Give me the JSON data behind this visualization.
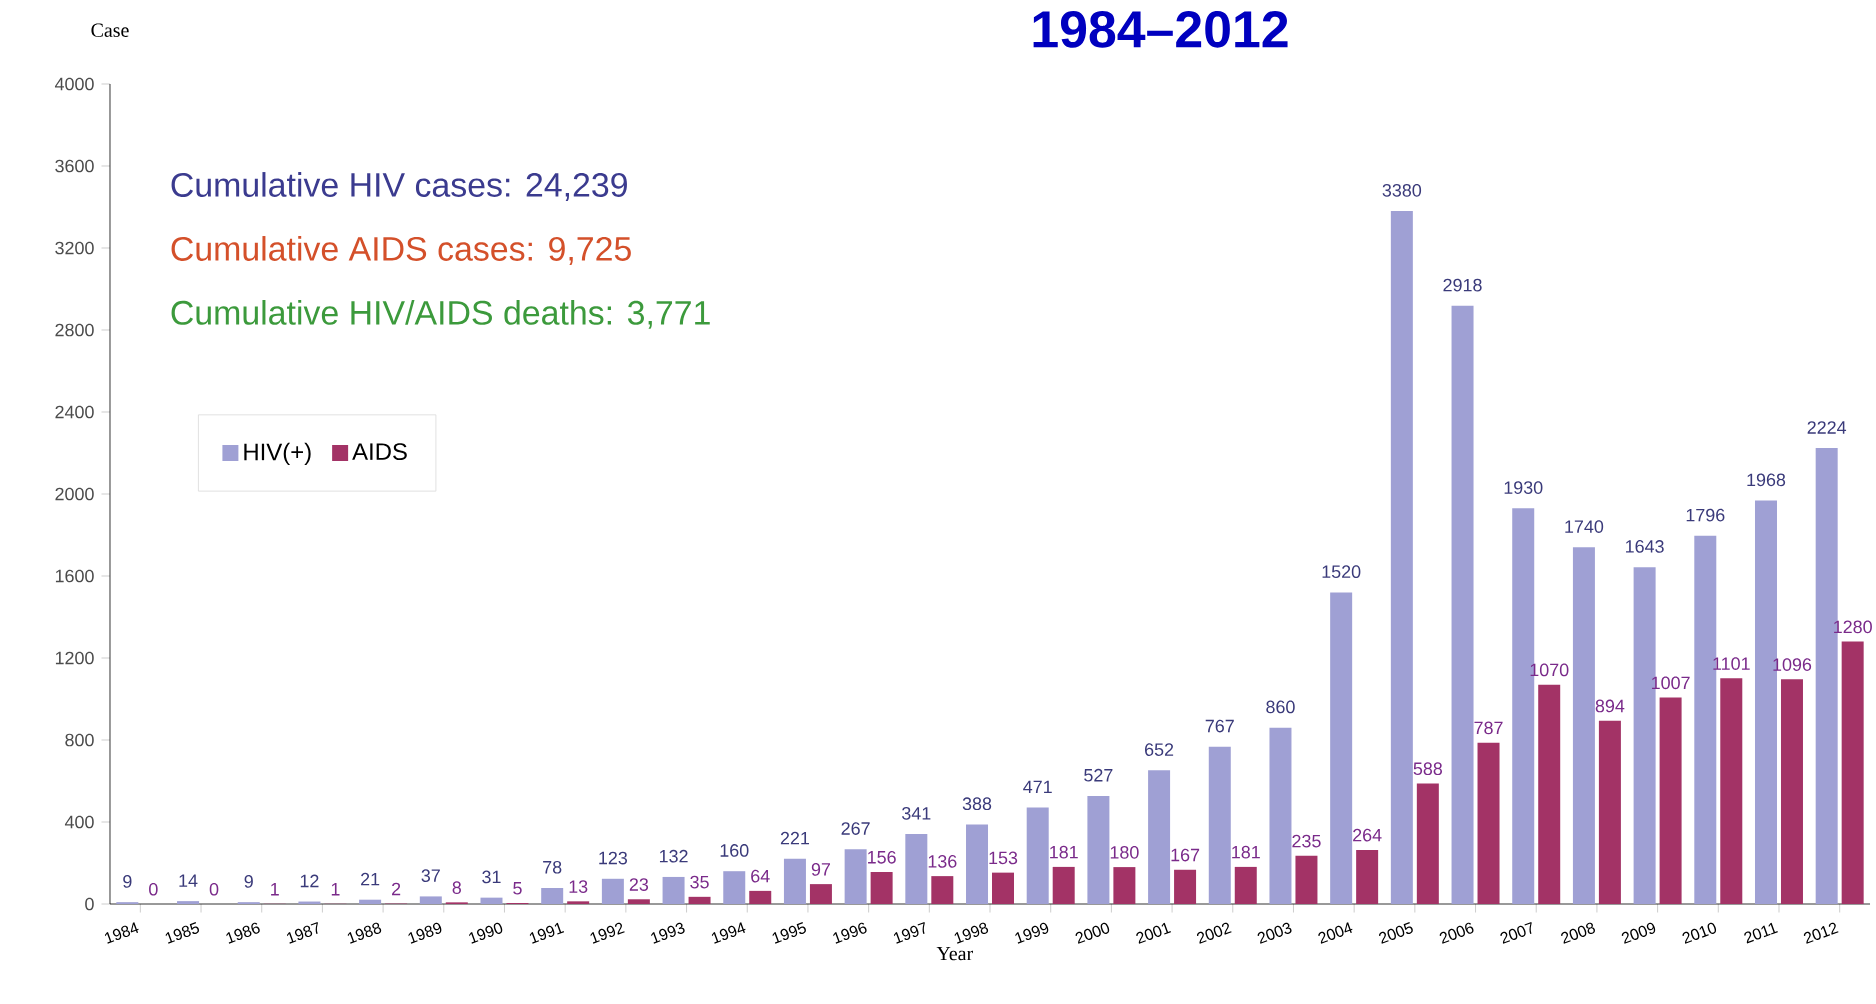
{
  "chart_data": {
    "type": "bar",
    "title": "1984–2012",
    "xlabel": "Year",
    "ylabel": "Case",
    "categories": [
      "1984",
      "1985",
      "1986",
      "1987",
      "1988",
      "1989",
      "1990",
      "1991",
      "1992",
      "1993",
      "1994",
      "1995",
      "1996",
      "1997",
      "1998",
      "1999",
      "2000",
      "2001",
      "2002",
      "2003",
      "2004",
      "2005",
      "2006",
      "2007",
      "2008",
      "2009",
      "2010",
      "2011",
      "2012"
    ],
    "series": [
      {
        "name": "HIV(+)",
        "color": "#9fa0d4",
        "values": [
          9,
          14,
          9,
          12,
          21,
          37,
          31,
          78,
          123,
          132,
          160,
          221,
          267,
          341,
          388,
          471,
          527,
          652,
          767,
          860,
          1520,
          3380,
          2918,
          1930,
          1740,
          1643,
          1796,
          1968,
          2224
        ]
      },
      {
        "name": "AIDS",
        "color": "#a33366",
        "values": [
          0,
          0,
          1,
          1,
          2,
          8,
          5,
          13,
          23,
          35,
          64,
          97,
          156,
          136,
          153,
          181,
          180,
          167,
          181,
          235,
          264,
          588,
          787,
          1070,
          894,
          1007,
          1101,
          1096,
          1280
        ]
      }
    ],
    "ylim": [
      0,
      4000
    ],
    "yticks": [
      0,
      400,
      800,
      1200,
      1600,
      2000,
      2400,
      2800,
      3200,
      3600,
      4000
    ],
    "data_labels": true,
    "legend": "left",
    "grid": false,
    "annotations": [
      "Cumulative HIV cases: 24,239",
      "Cumulative AIDS cases: 9,725",
      "Cumulative HIV/AIDS deaths: 3,771"
    ]
  }
}
